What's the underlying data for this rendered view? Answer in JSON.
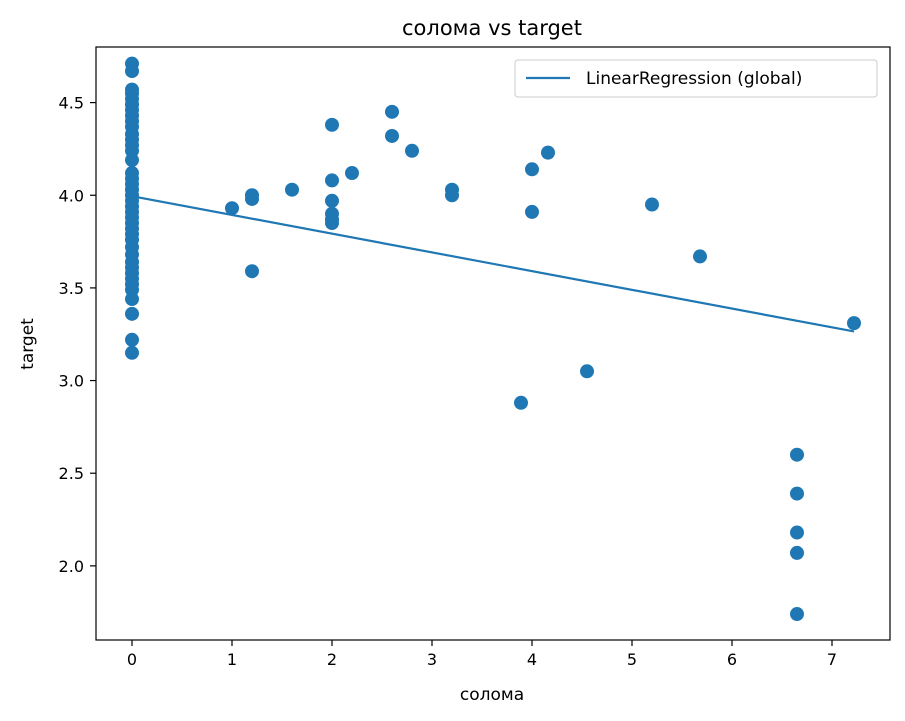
{
  "chart_data": {
    "type": "scatter",
    "title": "солома vs target",
    "xlabel": "солома",
    "ylabel": "target",
    "xlim": [
      -0.36,
      7.58
    ],
    "ylim": [
      1.6,
      4.8
    ],
    "xticks": [
      0,
      1,
      2,
      3,
      4,
      5,
      6,
      7
    ],
    "yticks": [
      2.0,
      2.5,
      3.0,
      3.5,
      4.0,
      4.5
    ],
    "grid": false,
    "legend_position": "top-right",
    "colors": {
      "series": "#1f77b4"
    },
    "series": [
      {
        "kind": "points",
        "points": [
          [
            0,
            4.71
          ],
          [
            0,
            4.67
          ],
          [
            0,
            4.57
          ],
          [
            0,
            4.55
          ],
          [
            0,
            4.52
          ],
          [
            0,
            4.49
          ],
          [
            0,
            4.46
          ],
          [
            0,
            4.43
          ],
          [
            0,
            4.4
          ],
          [
            0,
            4.37
          ],
          [
            0,
            4.33
          ],
          [
            0,
            4.3
          ],
          [
            0,
            4.27
          ],
          [
            0,
            4.24
          ],
          [
            0,
            4.19
          ],
          [
            0,
            4.12
          ],
          [
            0,
            4.09
          ],
          [
            0,
            4.06
          ],
          [
            0,
            4.03
          ],
          [
            0,
            4.0
          ],
          [
            0,
            3.97
          ],
          [
            0,
            3.94
          ],
          [
            0,
            3.91
          ],
          [
            0,
            3.88
          ],
          [
            0,
            3.85
          ],
          [
            0,
            3.82
          ],
          [
            0,
            3.79
          ],
          [
            0,
            3.76
          ],
          [
            0,
            3.72
          ],
          [
            0,
            3.68
          ],
          [
            0,
            3.64
          ],
          [
            0,
            3.61
          ],
          [
            0,
            3.58
          ],
          [
            0,
            3.55
          ],
          [
            0,
            3.52
          ],
          [
            0,
            3.49
          ],
          [
            0,
            3.44
          ],
          [
            0,
            3.36
          ],
          [
            0,
            3.22
          ],
          [
            0,
            3.15
          ],
          [
            1.0,
            3.93
          ],
          [
            1.2,
            4.0
          ],
          [
            1.2,
            3.98
          ],
          [
            1.2,
            3.59
          ],
          [
            1.6,
            4.03
          ],
          [
            2.0,
            4.38
          ],
          [
            2.0,
            4.08
          ],
          [
            2.0,
            3.97
          ],
          [
            2.0,
            3.9
          ],
          [
            2.0,
            3.87
          ],
          [
            2.0,
            3.85
          ],
          [
            2.2,
            4.12
          ],
          [
            2.6,
            4.45
          ],
          [
            2.6,
            4.32
          ],
          [
            2.8,
            4.24
          ],
          [
            3.2,
            4.03
          ],
          [
            3.2,
            4.0
          ],
          [
            3.89,
            2.88
          ],
          [
            4.0,
            4.14
          ],
          [
            4.0,
            3.91
          ],
          [
            4.16,
            4.23
          ],
          [
            4.55,
            3.05
          ],
          [
            5.2,
            3.95
          ],
          [
            5.68,
            3.67
          ],
          [
            7.22,
            3.31
          ],
          [
            6.65,
            2.6
          ],
          [
            6.65,
            2.39
          ],
          [
            6.65,
            2.18
          ],
          [
            6.65,
            2.07
          ],
          [
            6.65,
            1.74
          ]
        ]
      },
      {
        "kind": "line",
        "name": "LinearRegression (global)",
        "x": [
          0,
          7.22
        ],
        "y": [
          3.995,
          3.265
        ]
      }
    ]
  }
}
